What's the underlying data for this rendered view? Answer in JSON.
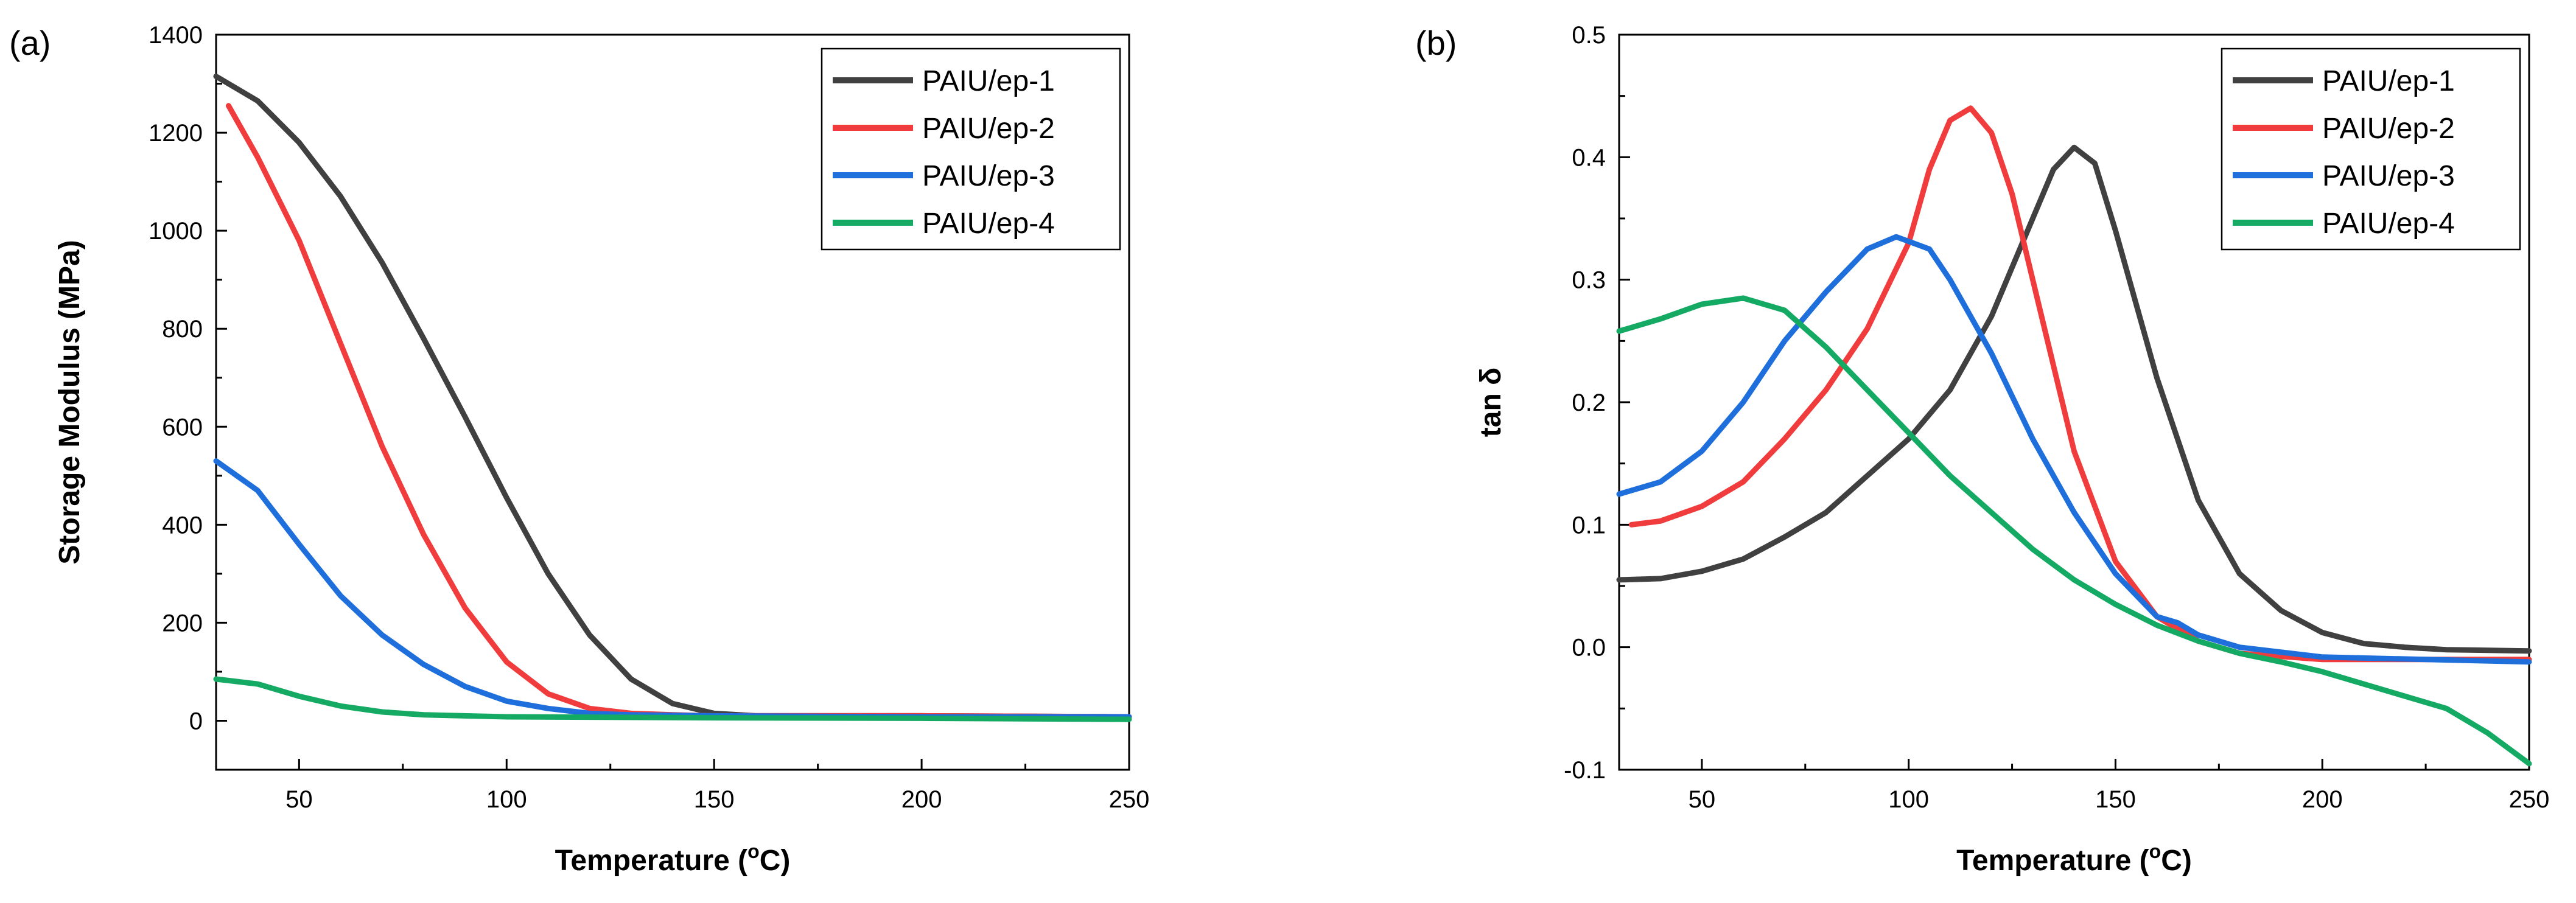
{
  "chart_data": [
    {
      "type": "line",
      "panel_label": "(a)",
      "xlabel": "Temperature (",
      "xlabel_sup": "o",
      "xlabel_suffix": "C)",
      "ylabel": "Storage Modulus (MPa)",
      "xlim": [
        30,
        250
      ],
      "ylim": [
        -100,
        1400
      ],
      "xticks": [
        50,
        100,
        150,
        200,
        250
      ],
      "yticks": [
        0,
        200,
        400,
        600,
        800,
        1000,
        1200,
        1400
      ],
      "legend_position": "top-right",
      "series": [
        {
          "name": "PAIU/ep-1",
          "color": "#404040",
          "x": [
            30,
            40,
            50,
            60,
            70,
            80,
            90,
            100,
            110,
            120,
            130,
            140,
            150,
            160,
            170,
            200,
            250
          ],
          "y": [
            1315,
            1265,
            1180,
            1070,
            935,
            780,
            620,
            455,
            300,
            175,
            85,
            35,
            15,
            10,
            10,
            10,
            8
          ]
        },
        {
          "name": "PAIU/ep-2",
          "color": "#f03c3c",
          "x": [
            33,
            40,
            50,
            60,
            70,
            80,
            90,
            100,
            110,
            120,
            130,
            140,
            150,
            200,
            250
          ],
          "y": [
            1255,
            1150,
            980,
            770,
            560,
            380,
            230,
            120,
            55,
            25,
            15,
            12,
            10,
            10,
            8
          ]
        },
        {
          "name": "PAIU/ep-3",
          "color": "#1e6fdc",
          "x": [
            30,
            40,
            50,
            60,
            70,
            80,
            90,
            100,
            110,
            120,
            130,
            150,
            200,
            250
          ],
          "y": [
            530,
            470,
            360,
            255,
            175,
            115,
            70,
            40,
            25,
            15,
            12,
            10,
            8,
            8
          ]
        },
        {
          "name": "PAIU/ep-4",
          "color": "#14aa64",
          "x": [
            30,
            40,
            50,
            60,
            70,
            80,
            100,
            150,
            200,
            250
          ],
          "y": [
            85,
            75,
            50,
            30,
            18,
            12,
            8,
            6,
            5,
            3
          ]
        }
      ]
    },
    {
      "type": "line",
      "panel_label": "(b)",
      "xlabel": "Temperature (",
      "xlabel_sup": "o",
      "xlabel_suffix": "C)",
      "ylabel": "tan δ",
      "xlim": [
        30,
        250
      ],
      "ylim": [
        -0.1,
        0.5
      ],
      "xticks": [
        50,
        100,
        150,
        200,
        250
      ],
      "yticks": [
        -0.1,
        0.0,
        0.1,
        0.2,
        0.3,
        0.4,
        0.5
      ],
      "legend_position": "top-right",
      "series": [
        {
          "name": "PAIU/ep-1",
          "color": "#404040",
          "x": [
            30,
            40,
            50,
            60,
            70,
            80,
            90,
            100,
            110,
            120,
            130,
            135,
            140,
            145,
            150,
            160,
            170,
            180,
            190,
            200,
            210,
            220,
            230,
            250
          ],
          "y": [
            0.055,
            0.056,
            0.062,
            0.072,
            0.09,
            0.11,
            0.14,
            0.17,
            0.21,
            0.27,
            0.35,
            0.39,
            0.408,
            0.395,
            0.34,
            0.22,
            0.12,
            0.06,
            0.03,
            0.012,
            0.003,
            0.0,
            -0.002,
            -0.003
          ]
        },
        {
          "name": "PAIU/ep-2",
          "color": "#f03c3c",
          "x": [
            33,
            40,
            50,
            60,
            70,
            80,
            90,
            100,
            105,
            110,
            115,
            120,
            125,
            130,
            140,
            150,
            160,
            170,
            180,
            200,
            250
          ],
          "y": [
            0.1,
            0.103,
            0.115,
            0.135,
            0.17,
            0.21,
            0.26,
            0.33,
            0.39,
            0.43,
            0.44,
            0.42,
            0.37,
            0.3,
            0.16,
            0.07,
            0.025,
            0.005,
            -0.005,
            -0.01,
            -0.01
          ]
        },
        {
          "name": "PAIU/ep-3",
          "color": "#1e6fdc",
          "x": [
            30,
            40,
            50,
            60,
            70,
            80,
            90,
            97,
            105,
            110,
            120,
            130,
            140,
            150,
            160,
            165,
            170,
            180,
            200,
            250
          ],
          "y": [
            0.125,
            0.135,
            0.16,
            0.2,
            0.25,
            0.29,
            0.325,
            0.335,
            0.325,
            0.3,
            0.24,
            0.17,
            0.11,
            0.06,
            0.025,
            0.02,
            0.01,
            0.0,
            -0.008,
            -0.012
          ]
        },
        {
          "name": "PAIU/ep-4",
          "color": "#14aa64",
          "x": [
            30,
            40,
            50,
            60,
            70,
            80,
            90,
            100,
            110,
            120,
            130,
            140,
            150,
            160,
            170,
            180,
            190,
            200,
            210,
            220,
            230,
            240,
            250
          ],
          "y": [
            0.258,
            0.268,
            0.28,
            0.285,
            0.275,
            0.245,
            0.21,
            0.175,
            0.14,
            0.11,
            0.08,
            0.055,
            0.035,
            0.018,
            0.005,
            -0.005,
            -0.012,
            -0.02,
            -0.03,
            -0.04,
            -0.05,
            -0.07,
            -0.095
          ]
        }
      ]
    }
  ]
}
